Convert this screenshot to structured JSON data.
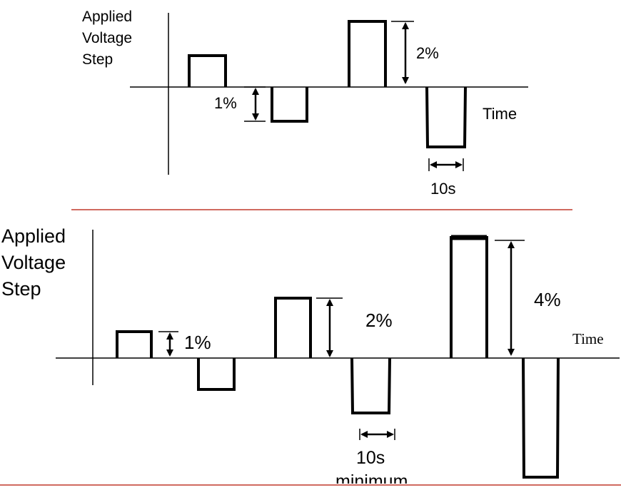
{
  "top_diagram": {
    "ylabel_lines": [
      "Applied",
      "Voltage",
      "Step"
    ],
    "xlabel": "Time",
    "step_small_label": "1%",
    "step_large_label": "2%",
    "duration_label": "10s"
  },
  "bottom_diagram": {
    "ylabel_lines": [
      "Applied",
      "Voltage",
      "Step"
    ],
    "xlabel": "Time",
    "step_1_label": "1%",
    "step_2_label": "2%",
    "step_4_label": "4%",
    "duration_label_line1": "10s",
    "duration_label_line2": "minimum"
  },
  "colors": {
    "separator": "#c0392b",
    "ink": "#000000"
  }
}
